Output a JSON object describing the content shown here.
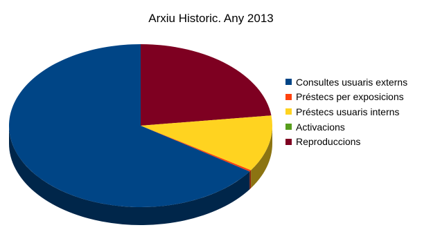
{
  "chart_data": {
    "type": "pie",
    "style": "3d",
    "title": "Arxiu Historic. Any 2013",
    "legend_position": "right",
    "series": [
      {
        "name": "Consultes usuaris externs",
        "value": 65.5,
        "color": "#004586"
      },
      {
        "name": "Préstecs per exposicions",
        "value": 0.3,
        "color": "#ff420e"
      },
      {
        "name": "Préstecs usuaris interns",
        "value": 11.2,
        "color": "#ffd320"
      },
      {
        "name": "Activacions",
        "value": 0.0,
        "color": "#579d1c"
      },
      {
        "name": "Reproduccions",
        "value": 23.0,
        "color": "#7e0021"
      }
    ]
  }
}
